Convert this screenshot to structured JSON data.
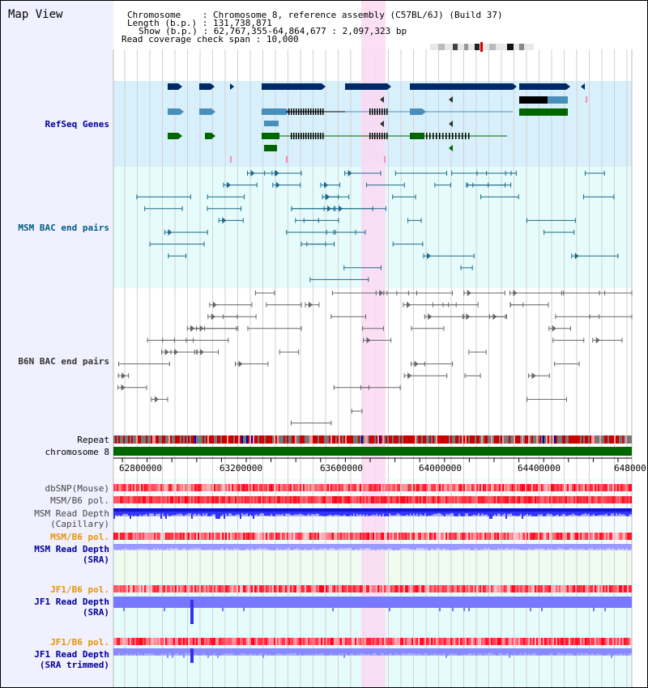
{
  "title": "Map View",
  "info": {
    "chromosome_key": "Chromosome    ",
    "chromosome_val": "Chromosome 8, reference assembly (C57BL/6J) (Build 37)",
    "length_key": "Length (b.p.)",
    "length_val": "131,738,871",
    "show_key": "Show (b.p.)",
    "show_val": "62,767,355-64,864,677 : 2,097,323 bp",
    "coverage_key": "Read coverage check span",
    "coverage_val": "10,000"
  },
  "tracks": {
    "refseq": "RefSeq Genes",
    "msm_bac": "MSM BAC end pairs",
    "b6n_bac": "B6N BAC end pairs",
    "repeat": "Repeat",
    "chromosome": "chromosome 8",
    "dbsnp": "dbSNP(Mouse)",
    "msm_b6_pol_1": "MSM/B6 pol.",
    "msm_read_depth_cap": "MSM Read Depth\n(Capillary)",
    "msm_b6_pol_2": "MSM/B6 pol.",
    "msm_read_depth_sra": "MSM Read Depth\n(SRA)",
    "jf1_b6_pol_1": "JF1/B6 pol.",
    "jf1_read_depth_sra": "JF1 Read Depth\n(SRA)",
    "jf1_b6_pol_2": "JF1/B6 pol.",
    "jf1_read_depth_trim": "JF1 Read Depth\n(SRA trimmed)"
  },
  "axis": {
    "ticks": [
      "62800000",
      "63200000",
      "63600000",
      "64000000",
      "64400000",
      "648000"
    ]
  },
  "colors": {
    "refseq_bg": "#d8f0fb",
    "track_bg": "#e6fbfb",
    "highlight": "#fbd9f3",
    "gene_dark": "#002a66",
    "gene_mid": "#4a8fba",
    "gene_green": "#006600",
    "bac_msm": "#1a6a8a",
    "bac_b6n": "#666666",
    "chrom_green": "#006600",
    "depth_blue": "#2222ee",
    "depth_light": "#7777ff",
    "label_blue": "#000099",
    "label_teal": "#005a80",
    "label_gray": "#333333",
    "label_orange": "#e69500"
  }
}
